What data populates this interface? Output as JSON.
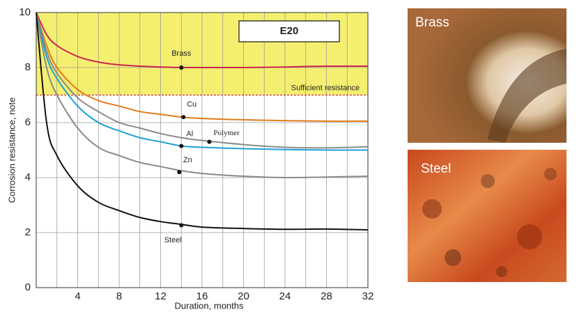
{
  "chart_data": {
    "type": "line",
    "x": [
      0,
      1,
      2,
      4,
      6,
      8,
      10,
      12,
      14,
      16,
      20,
      24,
      28,
      32
    ],
    "series": [
      {
        "name": "Brass",
        "color": "#c8254f",
        "values": [
          10,
          9.2,
          8.8,
          8.4,
          8.2,
          8.1,
          8.05,
          8.02,
          8,
          8,
          8,
          8.02,
          8.05,
          8.05
        ],
        "label_point": [
          14,
          8
        ]
      },
      {
        "name": "Cu",
        "color": "#e07b1a",
        "values": [
          10,
          8.8,
          8.0,
          7.2,
          6.8,
          6.6,
          6.4,
          6.3,
          6.2,
          6.15,
          6.1,
          6.07,
          6.05,
          6.05
        ],
        "label_point": [
          14.2,
          6.2
        ]
      },
      {
        "name": "Polymer",
        "color": "#8a8a8a",
        "values": [
          10,
          8.6,
          7.8,
          6.9,
          6.4,
          6.0,
          5.8,
          5.6,
          5.45,
          5.35,
          5.2,
          5.1,
          5.08,
          5.12
        ],
        "label_point": [
          16.7,
          5.3
        ]
      },
      {
        "name": "Al",
        "color": "#1e9fd6",
        "values": [
          10,
          8.4,
          7.6,
          6.6,
          6.0,
          5.7,
          5.45,
          5.3,
          5.15,
          5.1,
          5.05,
          5.02,
          5.0,
          5.0
        ],
        "label_point": [
          14,
          5.15
        ]
      },
      {
        "name": "Zn",
        "color": "#8a8a8a",
        "values": [
          10,
          8.0,
          7.0,
          5.8,
          5.1,
          4.8,
          4.55,
          4.4,
          4.25,
          4.15,
          4.05,
          4.0,
          4.02,
          4.05
        ],
        "label_point": [
          13.8,
          4.2
        ]
      },
      {
        "name": "Steel",
        "color": "#111111",
        "values": [
          10,
          6.0,
          4.8,
          3.7,
          3.1,
          2.8,
          2.55,
          2.4,
          2.3,
          2.2,
          2.15,
          2.12,
          2.13,
          2.1
        ],
        "label_point": [
          14,
          2.27
        ]
      }
    ],
    "xlabel": "Duration, months",
    "ylabel": "Corrosion resistance, note",
    "xlim": [
      0,
      32
    ],
    "ylim": [
      0,
      10
    ],
    "xticks": [
      4,
      8,
      12,
      16,
      20,
      24,
      28,
      32
    ],
    "x_minor_ticks": [
      2,
      6,
      10,
      14,
      18,
      22,
      26,
      30
    ],
    "yticks": [
      0,
      2,
      4,
      6,
      8,
      10
    ],
    "grid": true,
    "threshold": 7,
    "threshold_label": "Sufficient resistance",
    "threshold_color": "#f5ef70",
    "box_label": "E20"
  },
  "photos": [
    {
      "label": "Brass"
    },
    {
      "label": "Steel"
    }
  ]
}
